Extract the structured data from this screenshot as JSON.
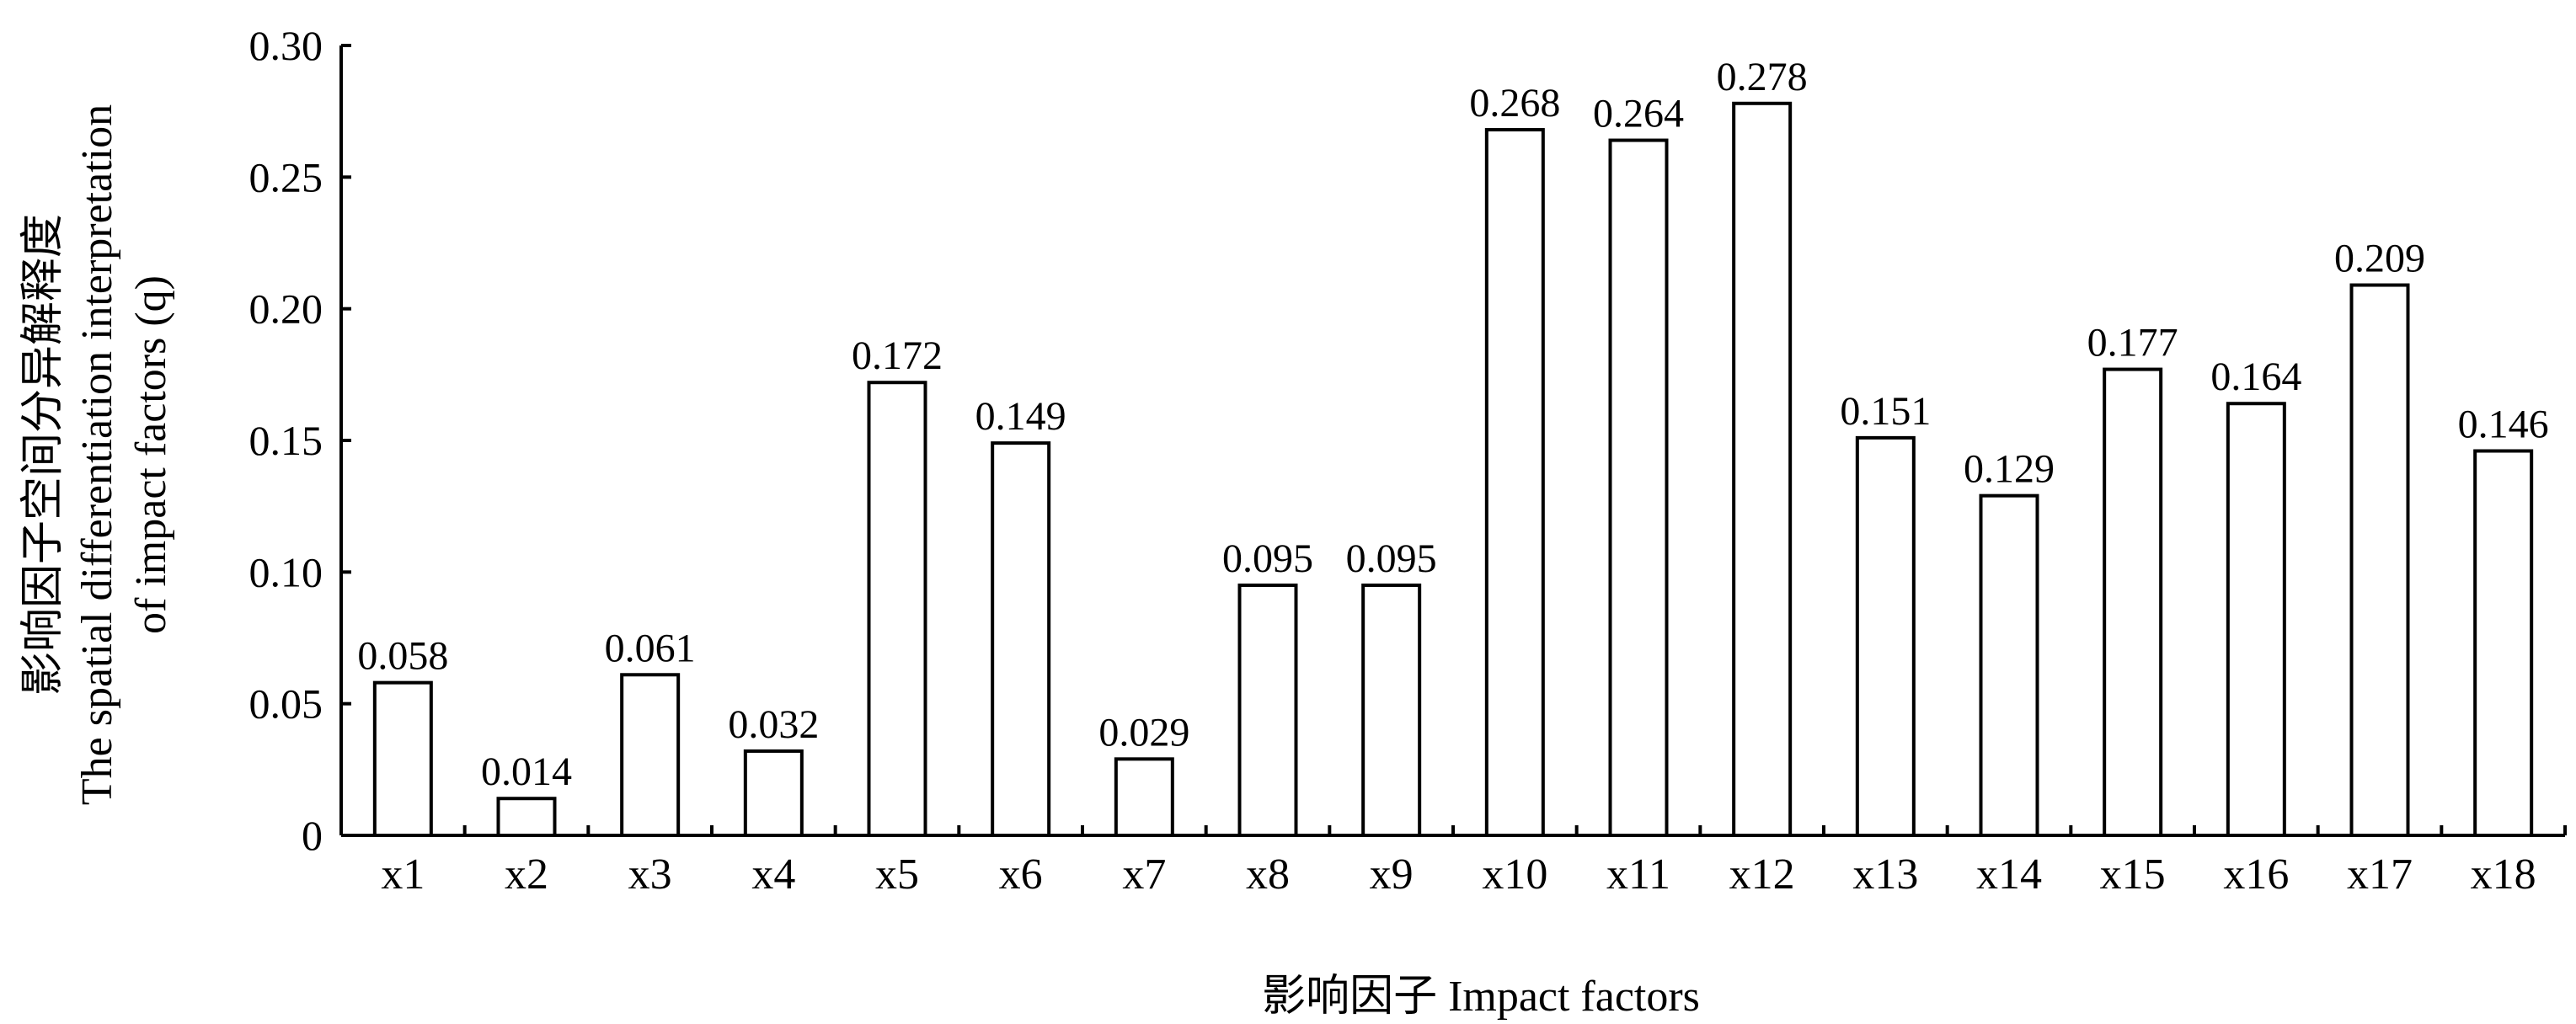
{
  "chart_data": {
    "type": "bar",
    "categories": [
      "x1",
      "x2",
      "x3",
      "x4",
      "x5",
      "x6",
      "x7",
      "x8",
      "x9",
      "x10",
      "x11",
      "x12",
      "x13",
      "x14",
      "x15",
      "x16",
      "x17",
      "x18"
    ],
    "values": [
      0.058,
      0.014,
      0.061,
      0.032,
      0.172,
      0.149,
      0.029,
      0.095,
      0.095,
      0.268,
      0.264,
      0.278,
      0.151,
      0.129,
      0.177,
      0.164,
      0.209,
      0.146
    ],
    "data_labels": [
      "0.058",
      "0.014",
      "0.061",
      "0.032",
      "0.172",
      "0.149",
      "0.029",
      "0.095",
      "0.095",
      "0.268",
      "0.264",
      "0.278",
      "0.151",
      "0.129",
      "0.177",
      "0.164",
      "0.209",
      "0.146"
    ],
    "ylim": [
      0,
      0.3
    ],
    "yticks": [
      0,
      0.05,
      0.1,
      0.15,
      0.2,
      0.25,
      0.3
    ],
    "ytick_labels": [
      "0",
      "0.05",
      "0.10",
      "0.15",
      "0.20",
      "0.25",
      "0.30"
    ],
    "xlabel": "影响因子 Impact factors",
    "ylabel_lines": [
      "影响因子空间分异解释度",
      "The spatial differentiation interpretation",
      "of impact factors (q)"
    ],
    "grid": false,
    "legend": "none",
    "colors": {
      "bar_fill": "#ffffff",
      "bar_edge": "#000000"
    }
  }
}
